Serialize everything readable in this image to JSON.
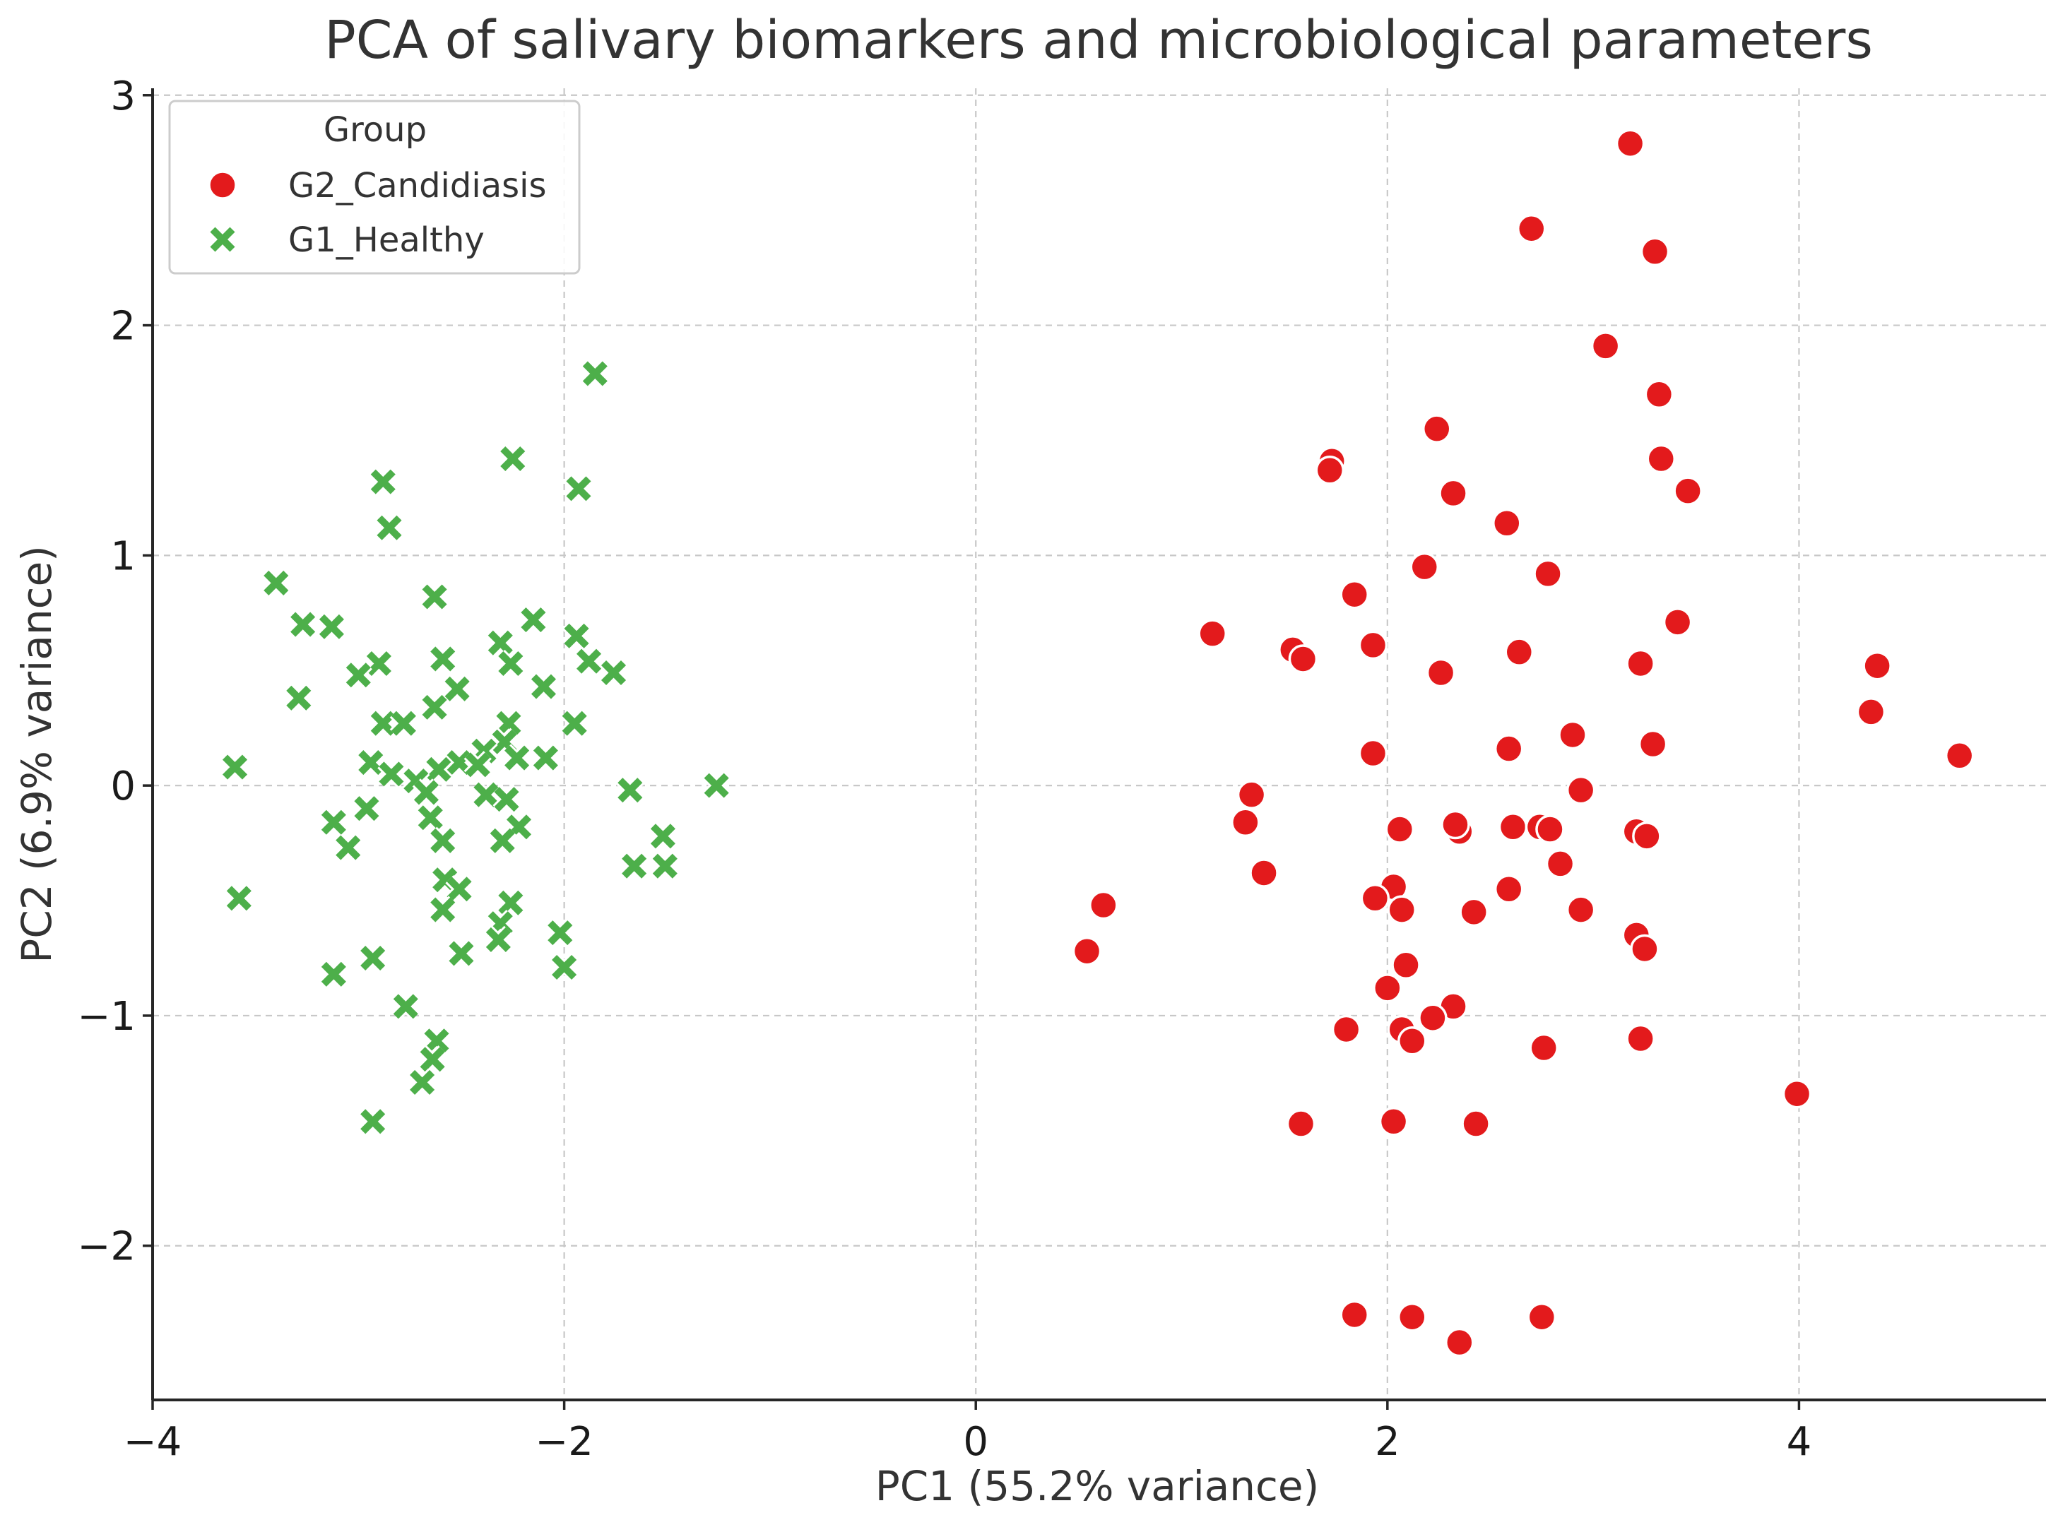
{
  "chart_data": {
    "type": "scatter",
    "title": "PCA of salivary biomarkers and microbiological parameters",
    "xlabel": "PC1 (55.2% variance)",
    "ylabel": "PC2 (6.9% variance)",
    "xlim": [
      -4.0,
      5.2
    ],
    "ylim": [
      -2.67,
      3.03
    ],
    "xticks": [
      -4,
      -2,
      0,
      2,
      4
    ],
    "yticks": [
      -2,
      -1,
      0,
      1,
      2,
      3
    ],
    "xtick_labels": [
      "−4",
      "−2",
      "0",
      "2",
      "4"
    ],
    "ytick_labels": [
      "−2",
      "−1",
      "0",
      "1",
      "2",
      "3"
    ],
    "grid": true,
    "legend": {
      "title": "Group",
      "position": "top-left",
      "entries": [
        {
          "label": "G2_Candidiasis",
          "marker": "circle",
          "color": "#e31a1c"
        },
        {
          "label": "G1_Healthy",
          "marker": "x",
          "color": "#4daf4a"
        }
      ]
    },
    "series": [
      {
        "name": "G2_Candidiasis",
        "marker": "circle",
        "color": "#e31a1c",
        "points": [
          [
            3.18,
            2.79
          ],
          [
            2.7,
            2.42
          ],
          [
            3.3,
            2.32
          ],
          [
            3.06,
            1.91
          ],
          [
            3.32,
            1.7
          ],
          [
            2.24,
            1.55
          ],
          [
            1.73,
            1.41
          ],
          [
            1.72,
            1.37
          ],
          [
            3.33,
            1.42
          ],
          [
            2.32,
            1.27
          ],
          [
            3.46,
            1.28
          ],
          [
            2.58,
            1.14
          ],
          [
            2.18,
            0.95
          ],
          [
            2.78,
            0.92
          ],
          [
            1.84,
            0.83
          ],
          [
            3.41,
            0.71
          ],
          [
            1.15,
            0.66
          ],
          [
            1.93,
            0.61
          ],
          [
            1.54,
            0.59
          ],
          [
            1.59,
            0.55
          ],
          [
            2.64,
            0.58
          ],
          [
            3.23,
            0.53
          ],
          [
            2.26,
            0.49
          ],
          [
            4.38,
            0.52
          ],
          [
            4.35,
            0.32
          ],
          [
            2.9,
            0.22
          ],
          [
            3.29,
            0.18
          ],
          [
            2.59,
            0.16
          ],
          [
            1.93,
            0.14
          ],
          [
            4.78,
            0.13
          ],
          [
            2.94,
            -0.02
          ],
          [
            1.34,
            -0.04
          ],
          [
            1.31,
            -0.16
          ],
          [
            2.35,
            -0.2
          ],
          [
            2.06,
            -0.19
          ],
          [
            2.33,
            -0.17
          ],
          [
            2.61,
            -0.18
          ],
          [
            2.74,
            -0.18
          ],
          [
            2.79,
            -0.19
          ],
          [
            3.21,
            -0.2
          ],
          [
            3.26,
            -0.22
          ],
          [
            1.4,
            -0.38
          ],
          [
            2.84,
            -0.34
          ],
          [
            2.59,
            -0.45
          ],
          [
            2.03,
            -0.44
          ],
          [
            1.94,
            -0.49
          ],
          [
            2.07,
            -0.54
          ],
          [
            2.42,
            -0.55
          ],
          [
            2.94,
            -0.54
          ],
          [
            0.62,
            -0.52
          ],
          [
            0.54,
            -0.72
          ],
          [
            3.21,
            -0.65
          ],
          [
            3.25,
            -0.71
          ],
          [
            2.09,
            -0.78
          ],
          [
            2.0,
            -0.88
          ],
          [
            2.32,
            -0.96
          ],
          [
            2.22,
            -1.01
          ],
          [
            1.8,
            -1.06
          ],
          [
            2.07,
            -1.06
          ],
          [
            2.12,
            -1.11
          ],
          [
            3.23,
            -1.1
          ],
          [
            2.76,
            -1.14
          ],
          [
            3.99,
            -1.34
          ],
          [
            1.58,
            -1.47
          ],
          [
            2.03,
            -1.46
          ],
          [
            2.43,
            -1.47
          ],
          [
            1.84,
            -2.3
          ],
          [
            2.12,
            -2.31
          ],
          [
            2.75,
            -2.31
          ],
          [
            2.35,
            -2.42
          ]
        ]
      },
      {
        "name": "G1_Healthy",
        "marker": "x",
        "color": "#4daf4a",
        "points": [
          [
            -1.85,
            1.79
          ],
          [
            -2.25,
            1.42
          ],
          [
            -2.88,
            1.32
          ],
          [
            -1.93,
            1.29
          ],
          [
            -2.85,
            1.12
          ],
          [
            -3.4,
            0.88
          ],
          [
            -2.63,
            0.82
          ],
          [
            -3.27,
            0.7
          ],
          [
            -3.13,
            0.69
          ],
          [
            -2.15,
            0.72
          ],
          [
            -1.94,
            0.65
          ],
          [
            -2.31,
            0.62
          ],
          [
            -2.59,
            0.55
          ],
          [
            -2.26,
            0.53
          ],
          [
            -1.88,
            0.54
          ],
          [
            -2.9,
            0.53
          ],
          [
            -1.76,
            0.49
          ],
          [
            -3.0,
            0.48
          ],
          [
            -2.52,
            0.42
          ],
          [
            -2.1,
            0.43
          ],
          [
            -3.29,
            0.38
          ],
          [
            -2.63,
            0.34
          ],
          [
            -2.88,
            0.27
          ],
          [
            -2.78,
            0.27
          ],
          [
            -2.27,
            0.27
          ],
          [
            -1.95,
            0.27
          ],
          [
            -2.29,
            0.19
          ],
          [
            -2.39,
            0.15
          ],
          [
            -2.23,
            0.12
          ],
          [
            -2.09,
            0.12
          ],
          [
            -2.51,
            0.1
          ],
          [
            -2.61,
            0.07
          ],
          [
            -2.42,
            0.09
          ],
          [
            -2.94,
            0.1
          ],
          [
            -2.84,
            0.05
          ],
          [
            -2.72,
            0.02
          ],
          [
            -3.6,
            0.08
          ],
          [
            -2.67,
            -0.03
          ],
          [
            -2.38,
            -0.04
          ],
          [
            -2.28,
            -0.06
          ],
          [
            -1.68,
            -0.02
          ],
          [
            -1.26,
            0.0
          ],
          [
            -2.96,
            -0.1
          ],
          [
            -3.12,
            -0.16
          ],
          [
            -2.65,
            -0.14
          ],
          [
            -2.22,
            -0.18
          ],
          [
            -2.59,
            -0.24
          ],
          [
            -2.3,
            -0.24
          ],
          [
            -1.52,
            -0.22
          ],
          [
            -3.05,
            -0.27
          ],
          [
            -1.66,
            -0.35
          ],
          [
            -1.51,
            -0.35
          ],
          [
            -2.58,
            -0.41
          ],
          [
            -2.51,
            -0.45
          ],
          [
            -3.58,
            -0.49
          ],
          [
            -2.59,
            -0.54
          ],
          [
            -2.26,
            -0.51
          ],
          [
            -2.31,
            -0.6
          ],
          [
            -2.02,
            -0.64
          ],
          [
            -2.32,
            -0.67
          ],
          [
            -2.5,
            -0.73
          ],
          [
            -2.93,
            -0.75
          ],
          [
            -2.0,
            -0.79
          ],
          [
            -3.12,
            -0.82
          ],
          [
            -2.77,
            -0.96
          ],
          [
            -2.62,
            -1.11
          ],
          [
            -2.64,
            -1.19
          ],
          [
            -2.69,
            -1.29
          ],
          [
            -2.93,
            -1.46
          ]
        ]
      }
    ]
  }
}
